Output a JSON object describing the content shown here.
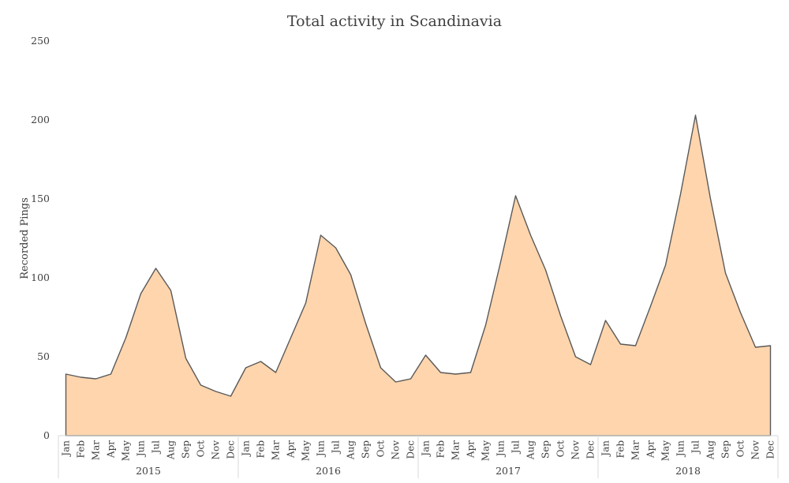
{
  "chart_data": {
    "type": "area",
    "title": "Total activity in Scandinavia",
    "ylabel": "Recorded Pings",
    "xlabel": "",
    "ylim": [
      0,
      250
    ],
    "yticks": [
      0,
      50,
      100,
      150,
      200,
      250
    ],
    "grid": false,
    "legend": "none",
    "fill_color": "#ffd5ad",
    "line_color": "#595959",
    "years": [
      "2015",
      "2016",
      "2017",
      "2018"
    ],
    "months": [
      "Jan",
      "Feb",
      "Mar",
      "Apr",
      "May",
      "Jun",
      "Jul",
      "Aug",
      "Sep",
      "Oct",
      "Nov",
      "Dec"
    ],
    "series": [
      {
        "values": [
          39,
          37,
          36,
          39,
          62,
          90,
          106,
          92,
          49,
          32,
          28,
          25,
          43,
          47,
          40,
          62,
          84,
          127,
          119,
          102,
          71,
          43,
          34,
          36,
          51,
          40,
          39,
          40,
          70,
          110,
          152,
          127,
          105,
          76,
          50,
          45,
          73,
          58,
          57,
          82,
          108,
          153,
          203,
          150,
          103,
          78,
          56,
          57
        ]
      }
    ]
  }
}
